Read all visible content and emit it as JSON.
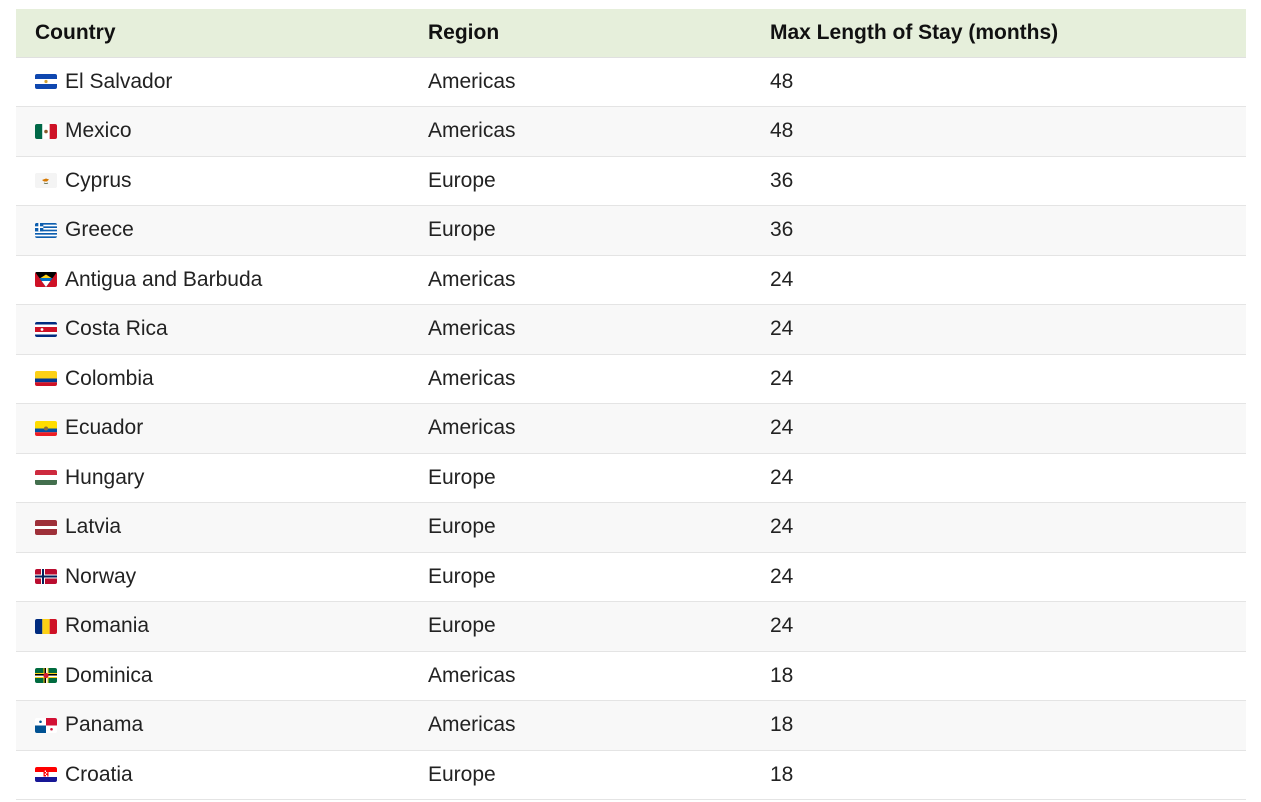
{
  "table": {
    "headers": {
      "country": "Country",
      "region": "Region",
      "stay": "Max Length of Stay (months)"
    },
    "rows": [
      {
        "country": "El Salvador",
        "flag_icon": "el-salvador-flag-icon",
        "region": "Americas",
        "stay": "48"
      },
      {
        "country": "Mexico",
        "flag_icon": "mexico-flag-icon",
        "region": "Americas",
        "stay": "48"
      },
      {
        "country": "Cyprus",
        "flag_icon": "cyprus-flag-icon",
        "region": "Europe",
        "stay": "36"
      },
      {
        "country": "Greece",
        "flag_icon": "greece-flag-icon",
        "region": "Europe",
        "stay": "36"
      },
      {
        "country": "Antigua and Barbuda",
        "flag_icon": "antigua-and-barbuda-flag-icon",
        "region": "Americas",
        "stay": "24"
      },
      {
        "country": "Costa Rica",
        "flag_icon": "costa-rica-flag-icon",
        "region": "Americas",
        "stay": "24"
      },
      {
        "country": "Colombia",
        "flag_icon": "colombia-flag-icon",
        "region": "Americas",
        "stay": "24"
      },
      {
        "country": "Ecuador",
        "flag_icon": "ecuador-flag-icon",
        "region": "Americas",
        "stay": "24"
      },
      {
        "country": "Hungary",
        "flag_icon": "hungary-flag-icon",
        "region": "Europe",
        "stay": "24"
      },
      {
        "country": "Latvia",
        "flag_icon": "latvia-flag-icon",
        "region": "Europe",
        "stay": "24"
      },
      {
        "country": "Norway",
        "flag_icon": "norway-flag-icon",
        "region": "Europe",
        "stay": "24"
      },
      {
        "country": "Romania",
        "flag_icon": "romania-flag-icon",
        "region": "Europe",
        "stay": "24"
      },
      {
        "country": "Dominica",
        "flag_icon": "dominica-flag-icon",
        "region": "Americas",
        "stay": "18"
      },
      {
        "country": "Panama",
        "flag_icon": "panama-flag-icon",
        "region": "Americas",
        "stay": "18"
      },
      {
        "country": "Croatia",
        "flag_icon": "croatia-flag-icon",
        "region": "Europe",
        "stay": "18"
      }
    ]
  },
  "colors": {
    "header_background": "#e6efdb",
    "row_stripe": "#f8f8f8"
  }
}
